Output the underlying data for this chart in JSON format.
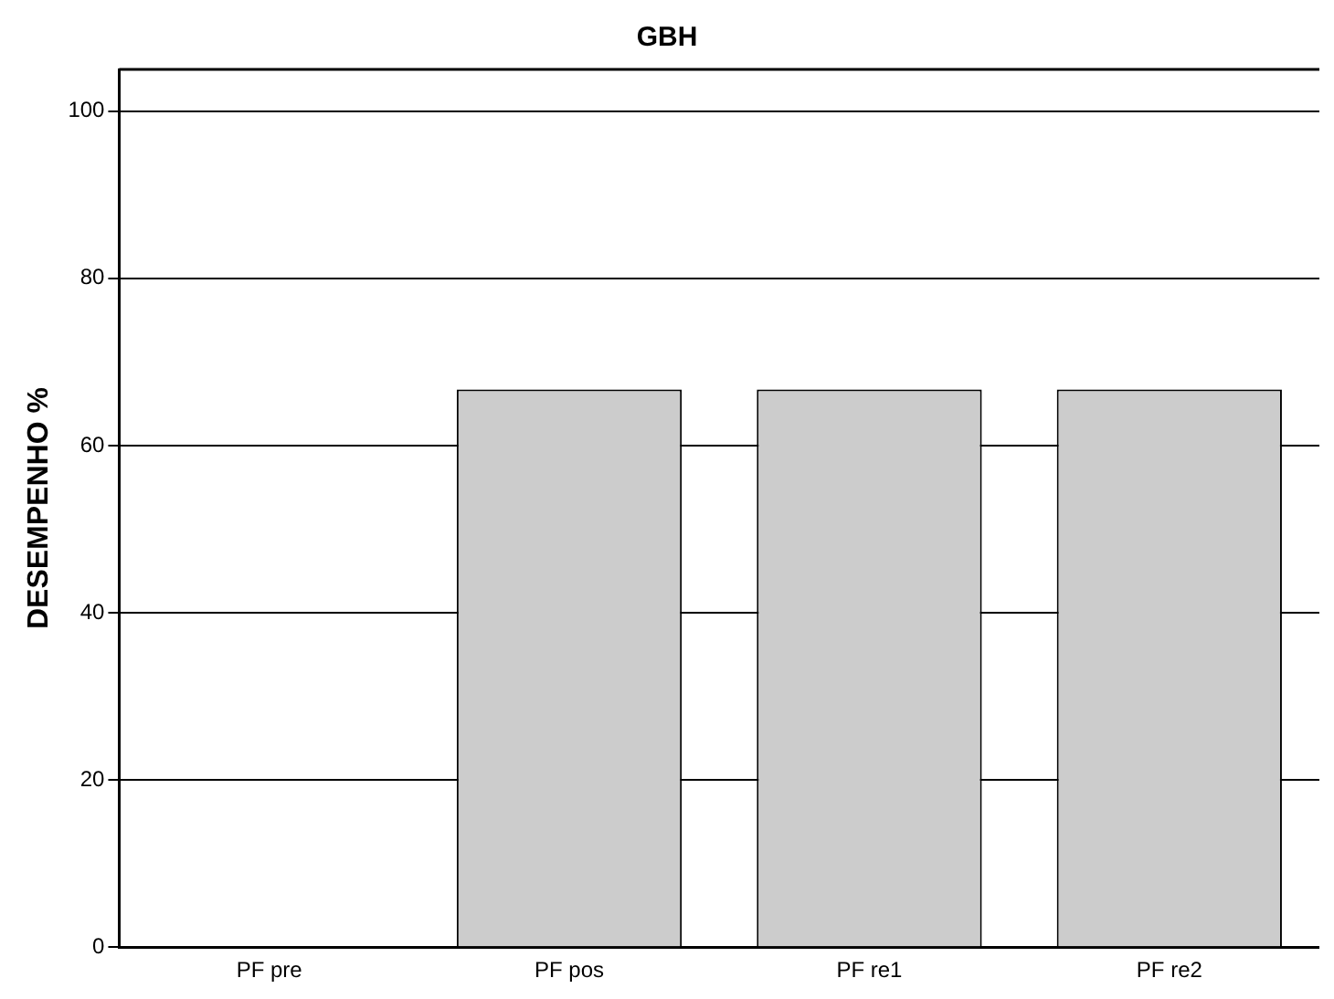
{
  "chart_data": {
    "type": "bar",
    "title": "GBH",
    "ylabel": "DESEMPENHO %",
    "categories": [
      "PF pre",
      "PF pos",
      "PF re1",
      "PF re2"
    ],
    "values": [
      0,
      66.7,
      66.7,
      66.7
    ],
    "color": "#cccccc",
    "ylim": [
      0,
      105
    ],
    "yticks": [
      0,
      20,
      40,
      60,
      80,
      100
    ],
    "grid": "y",
    "legend": false
  }
}
